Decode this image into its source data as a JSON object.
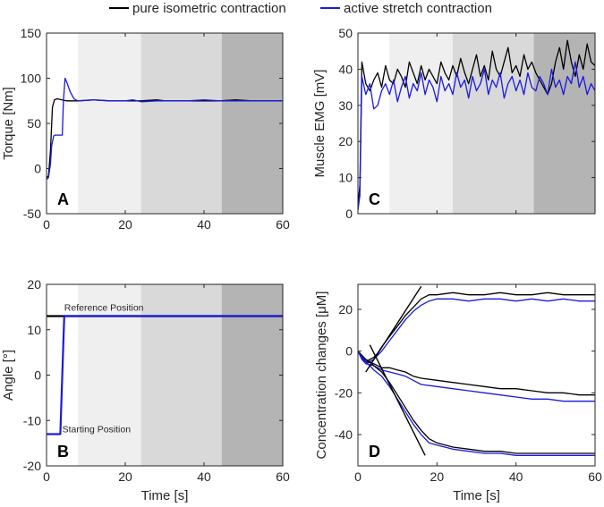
{
  "legend": {
    "entries": [
      {
        "label": "pure isometric contraction",
        "color": "#000000"
      },
      {
        "label": "active stretch contraction",
        "color": "#1a1adf"
      }
    ],
    "placement": "top-center"
  },
  "colors": {
    "black_series": "#000000",
    "blue_series": "#1a1adf",
    "phase_1": "#efefef",
    "phase_2": "#d9d9d9",
    "phase_3": "#b4b4b4"
  },
  "chart_data": [
    {
      "id": "A",
      "type": "line",
      "panel_label": "A",
      "title": "",
      "xlabel": "",
      "ylabel": "Torque [Nm]",
      "xlim": [
        0,
        60
      ],
      "ylim": [
        -50,
        150
      ],
      "xticks": [
        "0",
        "20",
        "40",
        "60"
      ],
      "yticks": [
        "-50",
        "0",
        "50",
        "100",
        "150"
      ],
      "shaded_phases": [
        [
          8,
          24
        ],
        [
          24,
          44.5
        ],
        [
          44.5,
          60
        ]
      ],
      "series": [
        {
          "name": "pure isometric contraction",
          "x": [
            0,
            0.5,
            1,
            1.5,
            2,
            2.5,
            3,
            4,
            5,
            8,
            12,
            16,
            20,
            24,
            28,
            30,
            32,
            36,
            40,
            44,
            48,
            52,
            56,
            60
          ],
          "y": [
            -10,
            -8,
            20,
            68,
            76,
            77,
            77,
            76,
            75,
            75,
            76,
            75,
            75,
            75,
            76,
            75,
            75,
            75,
            75,
            75,
            76,
            75,
            75,
            75
          ]
        },
        {
          "name": "active stretch contraction",
          "x": [
            0,
            0.5,
            1,
            1.3,
            1.8,
            2.2,
            3,
            4,
            4.3,
            4.7,
            5.2,
            6,
            7,
            8,
            12,
            16,
            20,
            22,
            24,
            28,
            32,
            36,
            40,
            44,
            48,
            52,
            56,
            60
          ],
          "y": [
            -12,
            -10,
            5,
            25,
            36,
            37,
            37,
            37,
            75,
            100,
            95,
            85,
            77,
            75,
            76,
            75,
            75,
            76,
            74,
            75,
            75,
            75,
            76,
            75,
            75,
            75,
            75,
            75
          ]
        }
      ]
    },
    {
      "id": "C",
      "type": "line",
      "panel_label": "C",
      "title": "",
      "xlabel": "",
      "ylabel": "Muscle EMG [mV]",
      "xlim": [
        0,
        60
      ],
      "ylim": [
        0,
        50
      ],
      "xticks": [],
      "yticks": [
        "0",
        "10",
        "20",
        "30",
        "40",
        "50"
      ],
      "shaded_phases": [
        [
          8,
          24
        ],
        [
          24,
          44.5
        ],
        [
          44.5,
          60
        ]
      ],
      "series": [
        {
          "name": "pure isometric contraction",
          "x": [
            0,
            0.5,
            1,
            2,
            3,
            4,
            5,
            6,
            7,
            8,
            9,
            10,
            11,
            12,
            13,
            14,
            15,
            16,
            17,
            18,
            19,
            20,
            21,
            22,
            23,
            24,
            25,
            26,
            27,
            28,
            29,
            30,
            31,
            32,
            33,
            34,
            35,
            36,
            37,
            38,
            39,
            40,
            41,
            42,
            43,
            44,
            45,
            46,
            47,
            48,
            49,
            50,
            51,
            52,
            53,
            54,
            55,
            56,
            57,
            58,
            59,
            60
          ],
          "y": [
            2,
            8,
            42,
            36,
            34,
            37,
            39,
            35,
            41,
            37,
            36,
            40,
            38,
            35,
            42,
            39,
            36,
            41,
            37,
            40,
            38,
            36,
            42,
            39,
            37,
            41,
            38,
            43,
            39,
            36,
            40,
            44,
            38,
            41,
            37,
            45,
            40,
            38,
            42,
            46,
            39,
            41,
            38,
            44,
            40,
            42,
            39,
            37,
            35,
            33,
            36,
            42,
            46,
            40,
            48,
            42,
            38,
            44,
            40,
            47,
            42,
            41
          ]
        },
        {
          "name": "active stretch contraction",
          "x": [
            0,
            0.5,
            1,
            2,
            3,
            4,
            5,
            6,
            7,
            8,
            9,
            10,
            11,
            12,
            13,
            14,
            15,
            16,
            17,
            18,
            19,
            20,
            21,
            22,
            23,
            24,
            25,
            26,
            27,
            28,
            29,
            30,
            31,
            32,
            33,
            34,
            35,
            36,
            37,
            38,
            39,
            40,
            41,
            42,
            43,
            44,
            45,
            46,
            47,
            48,
            49,
            50,
            51,
            52,
            53,
            54,
            55,
            56,
            57,
            58,
            59,
            60
          ],
          "y": [
            1,
            5,
            38,
            33,
            36,
            29,
            30,
            34,
            36,
            33,
            37,
            31,
            35,
            38,
            32,
            36,
            34,
            39,
            33,
            37,
            35,
            31,
            38,
            34,
            36,
            33,
            39,
            35,
            37,
            32,
            38,
            34,
            36,
            40,
            33,
            37,
            35,
            39,
            32,
            36,
            38,
            34,
            37,
            33,
            39,
            35,
            34,
            38,
            36,
            33,
            40,
            35,
            37,
            33,
            38,
            36,
            42,
            35,
            38,
            33,
            36,
            34
          ]
        }
      ]
    },
    {
      "id": "B",
      "type": "line",
      "panel_label": "B",
      "title": "",
      "xlabel": "Time [s]",
      "ylabel": "Angle [°]",
      "xlim": [
        0,
        60
      ],
      "ylim": [
        -20,
        20
      ],
      "xticks": [
        "0",
        "20",
        "40",
        "60"
      ],
      "yticks": [
        "-20",
        "-10",
        "0",
        "10",
        "20"
      ],
      "shaded_phases": [
        [
          8,
          24
        ],
        [
          24,
          44.5
        ],
        [
          44.5,
          60
        ]
      ],
      "annotations": [
        "Reference Position",
        "Starting Position"
      ],
      "series": [
        {
          "name": "pure isometric contraction",
          "x": [
            0,
            60
          ],
          "y": [
            13,
            13
          ]
        },
        {
          "name": "active stretch contraction",
          "x": [
            0,
            3.5,
            4,
            4.5,
            60
          ],
          "y": [
            -13,
            -13,
            0,
            13,
            13
          ]
        }
      ]
    },
    {
      "id": "D",
      "type": "line",
      "panel_label": "D",
      "title": "",
      "xlabel": "Time [s]",
      "ylabel": "Concentration changes [μM]",
      "xlim": [
        0,
        60
      ],
      "ylim": [
        -55,
        32
      ],
      "xticks": [
        "0",
        "20",
        "40",
        "60"
      ],
      "yticks": [
        "-40",
        "-20",
        "0",
        "20"
      ],
      "series": [
        {
          "name": "pure isometric contraction (upper)",
          "x": [
            0,
            1,
            2,
            3,
            4,
            5,
            6,
            8,
            10,
            12,
            14,
            16,
            18,
            20,
            24,
            28,
            32,
            36,
            40,
            44,
            48,
            52,
            56,
            60
          ],
          "y": [
            0,
            -3,
            -5,
            -4,
            -3,
            -1,
            2,
            7,
            12,
            17,
            21,
            25,
            27,
            27,
            28,
            27,
            27,
            28,
            27,
            27,
            28,
            27,
            27,
            27
          ]
        },
        {
          "name": "active stretch contraction (upper)",
          "x": [
            0,
            1,
            2,
            3,
            4,
            5,
            6,
            8,
            10,
            12,
            14,
            16,
            18,
            20,
            24,
            28,
            32,
            36,
            40,
            44,
            48,
            52,
            56,
            60
          ],
          "y": [
            0,
            -4,
            -6,
            -5,
            -4,
            -2,
            0,
            5,
            10,
            15,
            19,
            22,
            24,
            25,
            25,
            24,
            25,
            25,
            24,
            25,
            24,
            25,
            24,
            24
          ]
        },
        {
          "name": "pure isometric contraction (middle)",
          "x": [
            0,
            2,
            4,
            6,
            8,
            10,
            12,
            14,
            16,
            20,
            24,
            28,
            32,
            36,
            40,
            44,
            48,
            52,
            56,
            60
          ],
          "y": [
            0,
            -5,
            -6,
            -8,
            -8,
            -9,
            -10,
            -12,
            -13,
            -14,
            -15,
            -16,
            -17,
            -18,
            -18,
            -19,
            -20,
            -20,
            -21,
            -21
          ]
        },
        {
          "name": "active stretch contraction (middle)",
          "x": [
            0,
            2,
            4,
            6,
            8,
            10,
            12,
            14,
            16,
            20,
            24,
            28,
            32,
            36,
            40,
            44,
            48,
            52,
            56,
            60
          ],
          "y": [
            0,
            -6,
            -7,
            -9,
            -10,
            -11,
            -12,
            -14,
            -16,
            -17,
            -18,
            -19,
            -20,
            -21,
            -22,
            -23,
            -23,
            -24,
            -24,
            -24
          ]
        },
        {
          "name": "pure isometric contraction (lower)",
          "x": [
            0,
            1,
            2,
            3,
            4,
            6,
            8,
            10,
            12,
            14,
            16,
            17,
            18,
            20,
            24,
            28,
            32,
            36,
            40,
            44,
            48,
            52,
            56,
            60
          ],
          "y": [
            0,
            -2,
            -4,
            -5,
            -7,
            -10,
            -15,
            -21,
            -27,
            -33,
            -38,
            -40,
            -42,
            -44,
            -46,
            -47,
            -48,
            -48,
            -49,
            -49,
            -49,
            -49,
            -49,
            -49
          ]
        },
        {
          "name": "active stretch contraction (lower)",
          "x": [
            0,
            1,
            2,
            3,
            4,
            6,
            8,
            10,
            12,
            14,
            16,
            17,
            18,
            20,
            24,
            28,
            32,
            36,
            40,
            44,
            48,
            52,
            56,
            60
          ],
          "y": [
            0,
            -3,
            -5,
            -7,
            -9,
            -12,
            -17,
            -23,
            -29,
            -35,
            -40,
            -42,
            -44,
            -45,
            -47,
            -48,
            -49,
            -49,
            -50,
            -50,
            -50,
            -50,
            -50,
            -50
          ]
        },
        {
          "name": "fit line rise",
          "x": [
            2,
            16
          ],
          "y": [
            -10,
            31
          ]
        },
        {
          "name": "fit line fall",
          "x": [
            3,
            17
          ],
          "y": [
            3,
            -50
          ]
        }
      ]
    }
  ]
}
